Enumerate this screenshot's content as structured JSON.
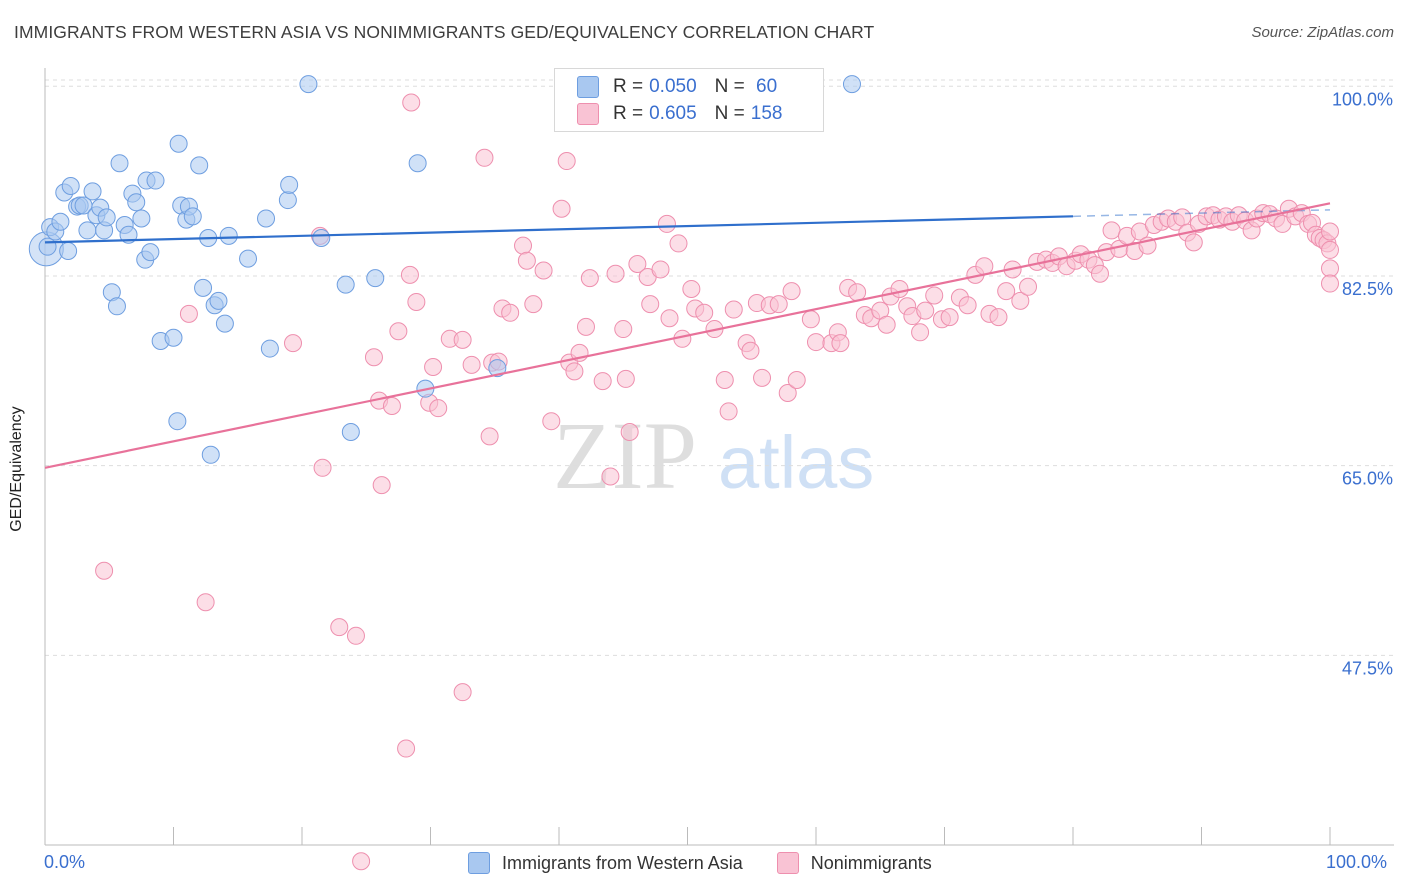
{
  "header": {
    "title": "IMMIGRANTS FROM WESTERN ASIA VS NONIMMIGRANTS GED/EQUIVALENCY CORRELATION CHART",
    "source": "Source: ZipAtlas.com"
  },
  "watermark": {
    "zip": "ZIP",
    "atlas": "atlas"
  },
  "legend": {
    "rows": [
      {
        "r_label": "R = ",
        "r_value": "0.050",
        "n_label": "N = ",
        "n_value": " 60",
        "color": "#a9c8f0",
        "stroke": "#6e9ee0"
      },
      {
        "r_label": "R = ",
        "r_value": "0.605",
        "n_label": "N = ",
        "n_value": "158",
        "color": "#f9c3d4",
        "stroke": "#ee8fae"
      }
    ]
  },
  "colors": {
    "blue_fill": "#a9c8f0",
    "blue_stroke": "#6e9ee0",
    "blue_line": "#2f6fcc",
    "pink_fill": "#f9c3d4",
    "pink_stroke": "#ee8fae",
    "pink_line": "#e8729a",
    "axis_text": "#3a6fcf",
    "grid": "#dddddd"
  },
  "chart_data": {
    "type": "scatter",
    "title": "IMMIGRANTS FROM WESTERN ASIA VS NONIMMIGRANTS GED/EQUIVALENCY CORRELATION CHART",
    "xlabel": "",
    "ylabel": "GED/Equivalency",
    "xlim": [
      0,
      100
    ],
    "ylim": [
      30,
      101.5
    ],
    "x_tick_labels": [
      "0.0%",
      "100.0%"
    ],
    "y_ticks": [
      {
        "value": 100.0,
        "label": "100.0%"
      },
      {
        "value": 82.5,
        "label": "82.5%"
      },
      {
        "value": 65.0,
        "label": "65.0%"
      },
      {
        "value": 47.5,
        "label": "47.5%"
      }
    ],
    "grid": "horizontal dashed",
    "legend_position": "top-center",
    "series": [
      {
        "name": "Immigrants from Western Asia",
        "trend": {
          "x": [
            0,
            80
          ],
          "y": [
            85.6,
            88.0
          ]
        },
        "points": [
          [
            0.2,
            85.2
          ],
          [
            0.4,
            87.0
          ],
          [
            0.8,
            86.6
          ],
          [
            1.2,
            87.5
          ],
          [
            1.5,
            90.2
          ],
          [
            1.8,
            84.8
          ],
          [
            2.0,
            90.8
          ],
          [
            2.5,
            88.9
          ],
          [
            2.7,
            89.0
          ],
          [
            3.0,
            89.0
          ],
          [
            3.3,
            86.7
          ],
          [
            3.7,
            90.3
          ],
          [
            4.0,
            88.1
          ],
          [
            4.3,
            88.8
          ],
          [
            4.6,
            86.7
          ],
          [
            4.8,
            87.9
          ],
          [
            5.2,
            81.0
          ],
          [
            5.6,
            79.7
          ],
          [
            5.8,
            92.9
          ],
          [
            6.2,
            87.2
          ],
          [
            6.5,
            86.3
          ],
          [
            6.8,
            90.1
          ],
          [
            7.1,
            89.3
          ],
          [
            7.5,
            87.8
          ],
          [
            7.8,
            84.0
          ],
          [
            7.9,
            91.3
          ],
          [
            8.2,
            84.7
          ],
          [
            8.6,
            91.3
          ],
          [
            9.0,
            76.5
          ],
          [
            10.0,
            76.8
          ],
          [
            10.3,
            69.1
          ],
          [
            10.4,
            94.7
          ],
          [
            10.6,
            89.0
          ],
          [
            11.0,
            87.7
          ],
          [
            11.2,
            88.9
          ],
          [
            11.5,
            88.0
          ],
          [
            12.0,
            92.7
          ],
          [
            12.3,
            81.4
          ],
          [
            12.9,
            66.0
          ],
          [
            12.7,
            86.0
          ],
          [
            13.2,
            79.8
          ],
          [
            13.5,
            80.2
          ],
          [
            14.0,
            78.1
          ],
          [
            14.3,
            86.2
          ],
          [
            15.8,
            84.1
          ],
          [
            17.2,
            87.8
          ],
          [
            17.5,
            75.8
          ],
          [
            18.9,
            89.5
          ],
          [
            19.0,
            90.9
          ],
          [
            20.5,
            100.2
          ],
          [
            21.5,
            86.0
          ],
          [
            23.4,
            81.7
          ],
          [
            23.8,
            68.1
          ],
          [
            25.7,
            82.3
          ],
          [
            29.0,
            92.9
          ],
          [
            29.6,
            72.1
          ],
          [
            35.2,
            74.0
          ],
          [
            62.8,
            100.2
          ]
        ],
        "big_point": [
          0.1,
          85.0
        ]
      },
      {
        "name": "Nonimmigrants",
        "trend": {
          "x": [
            0,
            100
          ],
          "y": [
            64.8,
            89.2
          ]
        },
        "points": [
          [
            4.6,
            55.3
          ],
          [
            11.2,
            79.0
          ],
          [
            12.5,
            52.4
          ],
          [
            19.3,
            76.3
          ],
          [
            21.4,
            86.2
          ],
          [
            21.6,
            64.8
          ],
          [
            22.9,
            50.1
          ],
          [
            24.2,
            49.3
          ],
          [
            24.6,
            28.5
          ],
          [
            25.6,
            75.0
          ],
          [
            26.0,
            71.0
          ],
          [
            26.2,
            63.2
          ],
          [
            27.0,
            70.5
          ],
          [
            27.5,
            77.4
          ],
          [
            28.1,
            38.9
          ],
          [
            28.4,
            82.6
          ],
          [
            28.5,
            98.5
          ],
          [
            28.9,
            80.1
          ],
          [
            29.9,
            70.8
          ],
          [
            30.2,
            74.1
          ],
          [
            30.6,
            70.3
          ],
          [
            31.5,
            76.7
          ],
          [
            32.5,
            44.1
          ],
          [
            32.5,
            76.6
          ],
          [
            33.2,
            74.3
          ],
          [
            34.2,
            93.4
          ],
          [
            34.6,
            67.7
          ],
          [
            34.8,
            74.5
          ],
          [
            35.3,
            74.6
          ],
          [
            35.6,
            79.5
          ],
          [
            36.2,
            79.1
          ],
          [
            37.2,
            85.3
          ],
          [
            37.5,
            83.9
          ],
          [
            38.0,
            79.9
          ],
          [
            38.8,
            83.0
          ],
          [
            39.4,
            69.1
          ],
          [
            40.2,
            88.7
          ],
          [
            40.6,
            93.1
          ],
          [
            40.8,
            74.5
          ],
          [
            41.2,
            73.7
          ],
          [
            41.6,
            75.4
          ],
          [
            42.1,
            77.8
          ],
          [
            42.4,
            82.3
          ],
          [
            43.4,
            72.8
          ],
          [
            44.0,
            64.0
          ],
          [
            44.4,
            82.7
          ],
          [
            45.0,
            77.6
          ],
          [
            45.2,
            73.0
          ],
          [
            45.5,
            68.1
          ],
          [
            46.1,
            83.6
          ],
          [
            46.9,
            82.4
          ],
          [
            47.1,
            79.9
          ],
          [
            47.9,
            83.1
          ],
          [
            48.4,
            87.3
          ],
          [
            48.6,
            78.6
          ],
          [
            49.3,
            85.5
          ],
          [
            49.6,
            76.7
          ],
          [
            50.3,
            81.3
          ],
          [
            50.6,
            79.5
          ],
          [
            51.3,
            79.1
          ],
          [
            52.1,
            77.6
          ],
          [
            52.9,
            72.9
          ],
          [
            53.2,
            70.0
          ],
          [
            53.6,
            79.4
          ],
          [
            54.6,
            76.3
          ],
          [
            54.9,
            75.6
          ],
          [
            55.4,
            80.0
          ],
          [
            55.8,
            73.1
          ],
          [
            56.4,
            79.8
          ],
          [
            57.1,
            79.9
          ],
          [
            57.8,
            71.7
          ],
          [
            58.1,
            81.1
          ],
          [
            58.5,
            72.9
          ],
          [
            59.6,
            78.5
          ],
          [
            60.0,
            76.4
          ],
          [
            61.2,
            76.3
          ],
          [
            61.7,
            77.3
          ],
          [
            61.9,
            76.3
          ],
          [
            62.5,
            81.4
          ],
          [
            63.2,
            81.0
          ],
          [
            63.8,
            78.9
          ],
          [
            64.3,
            78.6
          ],
          [
            65.0,
            79.3
          ],
          [
            65.5,
            78.0
          ],
          [
            65.8,
            80.6
          ],
          [
            66.5,
            81.3
          ],
          [
            67.1,
            79.7
          ],
          [
            67.5,
            78.8
          ],
          [
            68.1,
            77.3
          ],
          [
            68.5,
            79.3
          ],
          [
            69.2,
            80.7
          ],
          [
            69.8,
            78.5
          ],
          [
            70.4,
            78.7
          ],
          [
            71.2,
            80.5
          ],
          [
            71.8,
            79.8
          ],
          [
            72.4,
            82.6
          ],
          [
            73.1,
            83.4
          ],
          [
            73.5,
            79.0
          ],
          [
            74.2,
            78.7
          ],
          [
            74.8,
            81.1
          ],
          [
            75.3,
            83.1
          ],
          [
            75.9,
            80.2
          ],
          [
            76.5,
            81.5
          ],
          [
            77.2,
            83.8
          ],
          [
            77.9,
            84.0
          ],
          [
            78.4,
            83.7
          ],
          [
            78.9,
            84.3
          ],
          [
            79.5,
            83.4
          ],
          [
            80.2,
            83.9
          ],
          [
            80.6,
            84.5
          ],
          [
            81.2,
            84.0
          ],
          [
            81.7,
            83.5
          ],
          [
            82.1,
            82.7
          ],
          [
            82.6,
            84.7
          ],
          [
            83.0,
            86.7
          ],
          [
            83.6,
            85.0
          ],
          [
            84.2,
            86.2
          ],
          [
            84.8,
            84.8
          ],
          [
            85.2,
            86.6
          ],
          [
            85.8,
            85.3
          ],
          [
            86.3,
            87.2
          ],
          [
            86.9,
            87.5
          ],
          [
            87.4,
            87.8
          ],
          [
            88.0,
            87.5
          ],
          [
            88.5,
            87.9
          ],
          [
            88.9,
            86.5
          ],
          [
            89.4,
            85.6
          ],
          [
            89.8,
            87.3
          ],
          [
            90.4,
            88.0
          ],
          [
            90.9,
            88.1
          ],
          [
            91.4,
            87.7
          ],
          [
            91.9,
            88.0
          ],
          [
            92.4,
            87.5
          ],
          [
            92.9,
            88.1
          ],
          [
            93.4,
            87.6
          ],
          [
            93.9,
            86.7
          ],
          [
            94.3,
            87.8
          ],
          [
            94.8,
            88.3
          ],
          [
            95.3,
            88.2
          ],
          [
            95.8,
            87.8
          ],
          [
            96.3,
            87.3
          ],
          [
            96.8,
            88.7
          ],
          [
            97.3,
            88.0
          ],
          [
            97.8,
            88.3
          ],
          [
            98.3,
            87.3
          ],
          [
            98.6,
            87.4
          ],
          [
            98.9,
            86.3
          ],
          [
            99.2,
            86.0
          ],
          [
            99.5,
            85.8
          ],
          [
            99.8,
            85.5
          ],
          [
            100.0,
            84.9
          ],
          [
            100.0,
            83.2
          ],
          [
            100.0,
            81.8
          ],
          [
            100.0,
            86.6
          ]
        ]
      }
    ]
  },
  "bottom_legend": [
    {
      "label": "Immigrants from Western Asia",
      "color": "#a9c8f0",
      "stroke": "#6e9ee0"
    },
    {
      "label": "Nonimmigrants",
      "color": "#f9c3d4",
      "stroke": "#ee8fae"
    }
  ]
}
